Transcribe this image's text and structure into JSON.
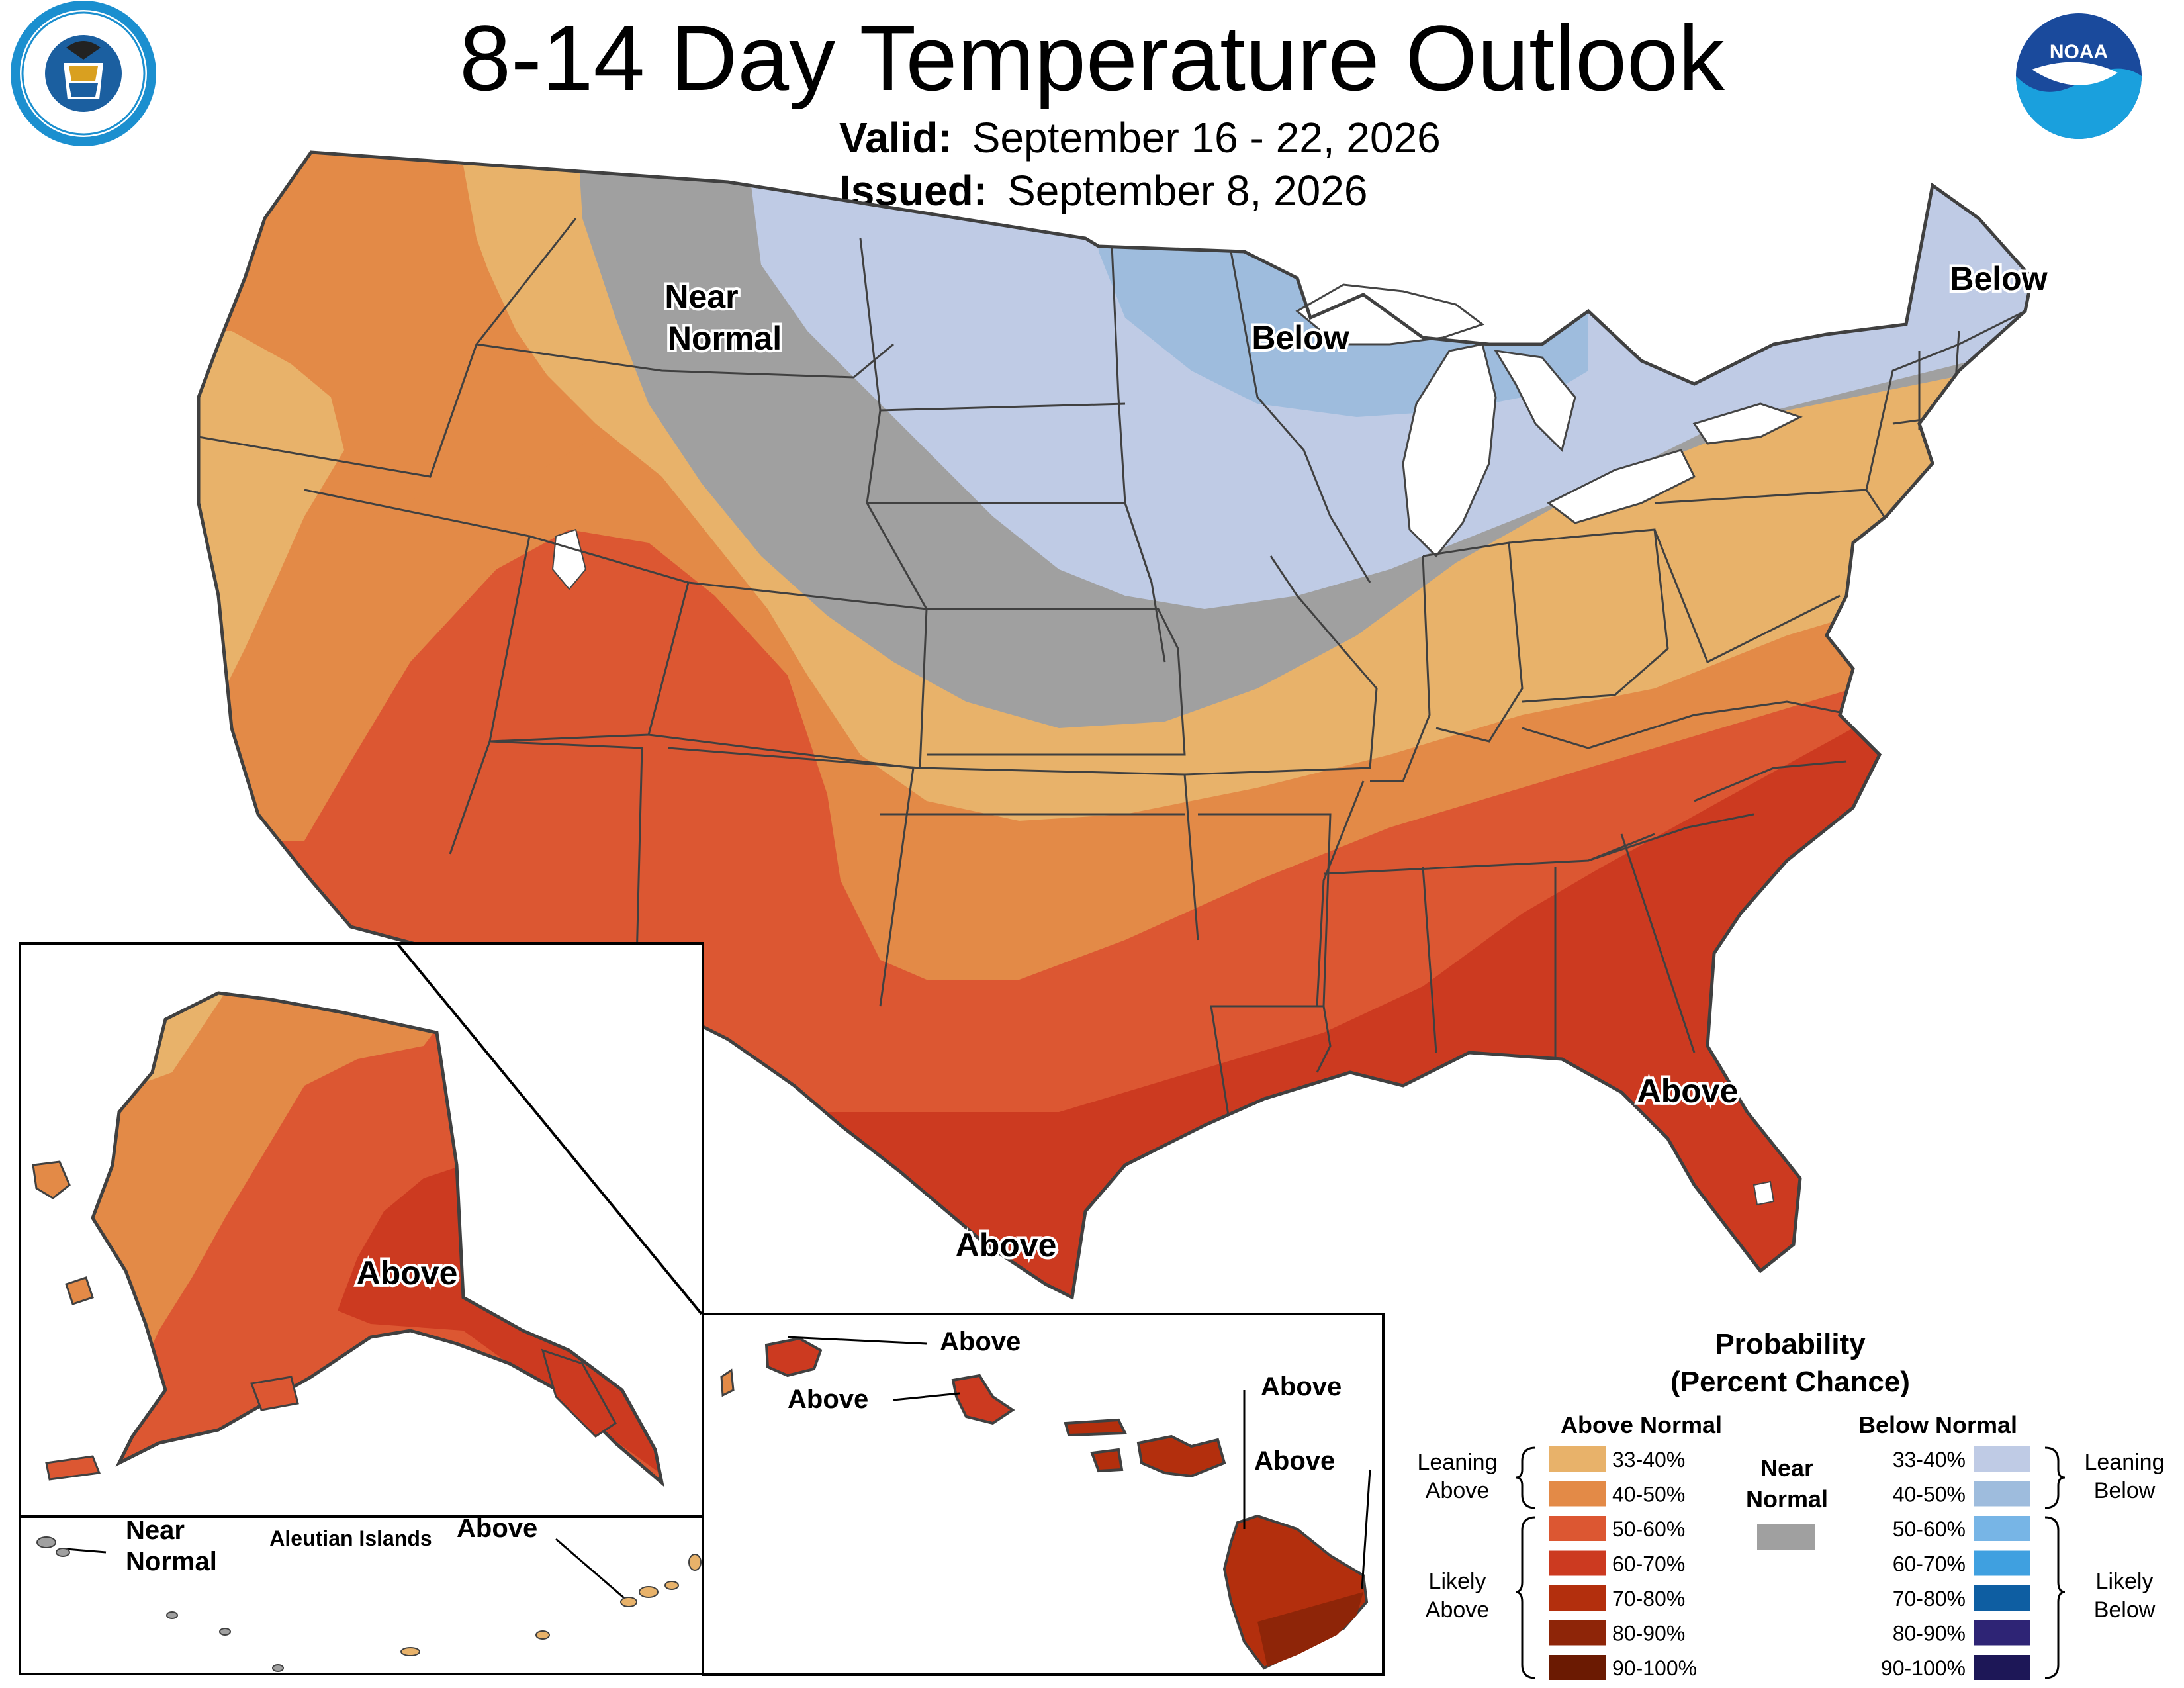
{
  "title": "8-14 Day Temperature Outlook",
  "valid_label": "Valid:",
  "valid_value": "September 16 - 22, 2026",
  "issued_label": "Issued:",
  "issued_value": "September 8, 2026",
  "logos": {
    "left": "department-of-commerce-seal",
    "right": "noaa-logo"
  },
  "map_labels": {
    "near_normal_1": "Near",
    "near_normal_2": "Normal",
    "below_midwest": "Below",
    "below_northeast": "Below",
    "above_florida": "Above",
    "above_texas": "Above",
    "above_alaska": "Above"
  },
  "aleutian": {
    "title": "Aleutian Islands",
    "near_1": "Near",
    "near_2": "Normal",
    "above": "Above"
  },
  "hawaii_labels": [
    "Above",
    "Above",
    "Above",
    "Above"
  ],
  "legend": {
    "title_1": "Probability",
    "title_2": "(Percent Chance)",
    "above_header": "Above Normal",
    "below_header": "Below Normal",
    "near_1": "Near",
    "near_2": "Normal",
    "near_color": "#a0a0a0",
    "leaning_above_1": "Leaning",
    "leaning_above_2": "Above",
    "likely_above_1": "Likely",
    "likely_above_2": "Above",
    "leaning_below_1": "Leaning",
    "leaning_below_2": "Below",
    "likely_below_1": "Likely",
    "likely_below_2": "Below",
    "above": [
      {
        "range": "33-40%",
        "color": "#e8b26a"
      },
      {
        "range": "40-50%",
        "color": "#e38a47"
      },
      {
        "range": "50-60%",
        "color": "#dc5732"
      },
      {
        "range": "60-70%",
        "color": "#cc3a20"
      },
      {
        "range": "70-80%",
        "color": "#b32f0d"
      },
      {
        "range": "80-90%",
        "color": "#8e2508"
      },
      {
        "range": "90-100%",
        "color": "#6b1a02"
      }
    ],
    "below": [
      {
        "range": "33-40%",
        "color": "#bfcbe5"
      },
      {
        "range": "40-50%",
        "color": "#9ebcdd"
      },
      {
        "range": "50-60%",
        "color": "#77b5e6"
      },
      {
        "range": "60-70%",
        "color": "#3fa0e0"
      },
      {
        "range": "70-80%",
        "color": "#0e5ea2"
      },
      {
        "range": "80-90%",
        "color": "#2e2475"
      },
      {
        "range": "90-100%",
        "color": "#1d1757"
      }
    ]
  }
}
